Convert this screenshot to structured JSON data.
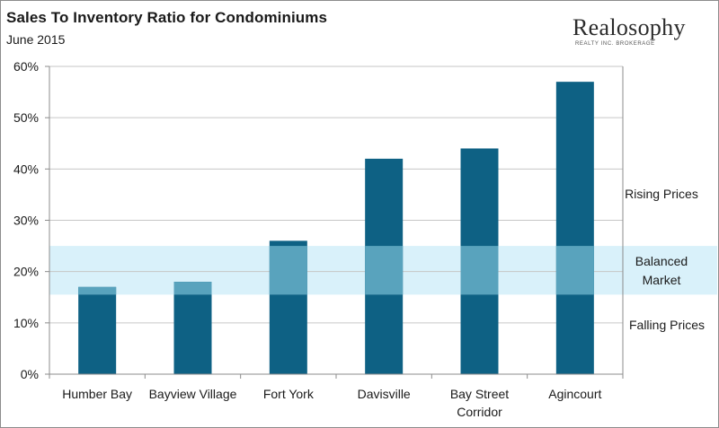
{
  "header": {
    "title": "Sales To Inventory Ratio for Condominiums",
    "subtitle": "June 2015"
  },
  "logo": {
    "name": "Realosophy",
    "tagline": "REALTY INC. BROKERAGE"
  },
  "colors": {
    "bar": "#0e6184",
    "bar_in_band": "#59a3bd",
    "band": "#d9f1fa",
    "axis": "#8c8c8c",
    "grid": "#c6c6c6"
  },
  "chart_data": {
    "type": "bar",
    "title": "Sales To Inventory Ratio for Condominiums",
    "subtitle": "June 2015",
    "categories": [
      "Humber Bay",
      "Bayview Village",
      "Fort York",
      "Davisville",
      "Bay Street Corridor",
      "Agincourt"
    ],
    "category_lines": [
      [
        "Humber Bay"
      ],
      [
        "Bayview Village"
      ],
      [
        "Fort York"
      ],
      [
        "Davisville"
      ],
      [
        "Bay Street",
        "Corridor"
      ],
      [
        "Agincourt"
      ]
    ],
    "values": [
      17,
      18,
      26,
      42,
      44,
      57
    ],
    "ylim": [
      0,
      60
    ],
    "yticks": [
      0,
      10,
      20,
      30,
      40,
      50,
      60
    ],
    "ytick_labels": [
      "0%",
      "10%",
      "20%",
      "30%",
      "40%",
      "50%",
      "60%"
    ],
    "grid": true,
    "balanced_band": [
      15.5,
      25
    ],
    "zones": {
      "rising": "Rising Prices",
      "balanced": [
        "Balanced",
        "Market"
      ],
      "falling": "Falling Prices"
    }
  }
}
